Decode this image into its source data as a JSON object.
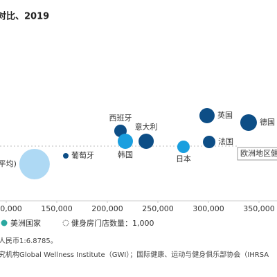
{
  "chart_data": {
    "type": "scatter",
    "title": "对比、2019",
    "points": [
      {
        "label": "平均)",
        "x": 128000,
        "y": 26.5,
        "size": 30250,
        "color": "#aed9f4"
      },
      {
        "label": "葡萄牙",
        "x": 158900,
        "y": 32.5,
        "size": 1000,
        "color": "#0d4e86"
      },
      {
        "label": "西班牙",
        "x": 213000,
        "y": 50.5,
        "size": 5060,
        "color": "#0d4e86"
      },
      {
        "label": "韩国",
        "x": 217800,
        "y": 43,
        "size": 7560,
        "color": "#1a9fdf"
      },
      {
        "label": "意大利",
        "x": 238400,
        "y": 43,
        "size": 7560,
        "color": "#0d4e86"
      },
      {
        "label": "日本",
        "x": 275300,
        "y": 39,
        "size": 5060,
        "color": "#1a9fdf"
      },
      {
        "label": "英国",
        "x": 298600,
        "y": 61.5,
        "size": 7560,
        "color": "#0d4e86"
      },
      {
        "label": "法国",
        "x": 300700,
        "y": 42.5,
        "size": 5060,
        "color": "#0d4e86"
      },
      {
        "label": "德国",
        "x": 339700,
        "y": 56.5,
        "size": 9000,
        "color": "#0d4e86"
      }
    ],
    "reference": {
      "label": "欧洲地区健",
      "y": 39.5
    },
    "xlim": [
      94000,
      370000
    ],
    "ylim": [
      0,
      145
    ],
    "xticks": [
      {
        "value": 100000,
        "label": "100,000"
      },
      {
        "value": 150000,
        "label": "150,000"
      },
      {
        "value": 200000,
        "label": "200,000"
      },
      {
        "value": 250000,
        "label": "250,000"
      },
      {
        "value": 300000,
        "label": "300,000"
      },
      {
        "value": 350000,
        "label": "350,000"
      }
    ],
    "legend": [
      {
        "label": "美洲国家",
        "color": "#2aa8a0"
      },
      {
        "label": "健身房门店数量：1,000",
        "size": 1000
      }
    ],
    "notes": [
      "人民币1:6.8785。",
      "究机构Global Wellness Institute（GWI）；国际健康、运动与健身俱乐部协会（IHRSA"
    ]
  }
}
